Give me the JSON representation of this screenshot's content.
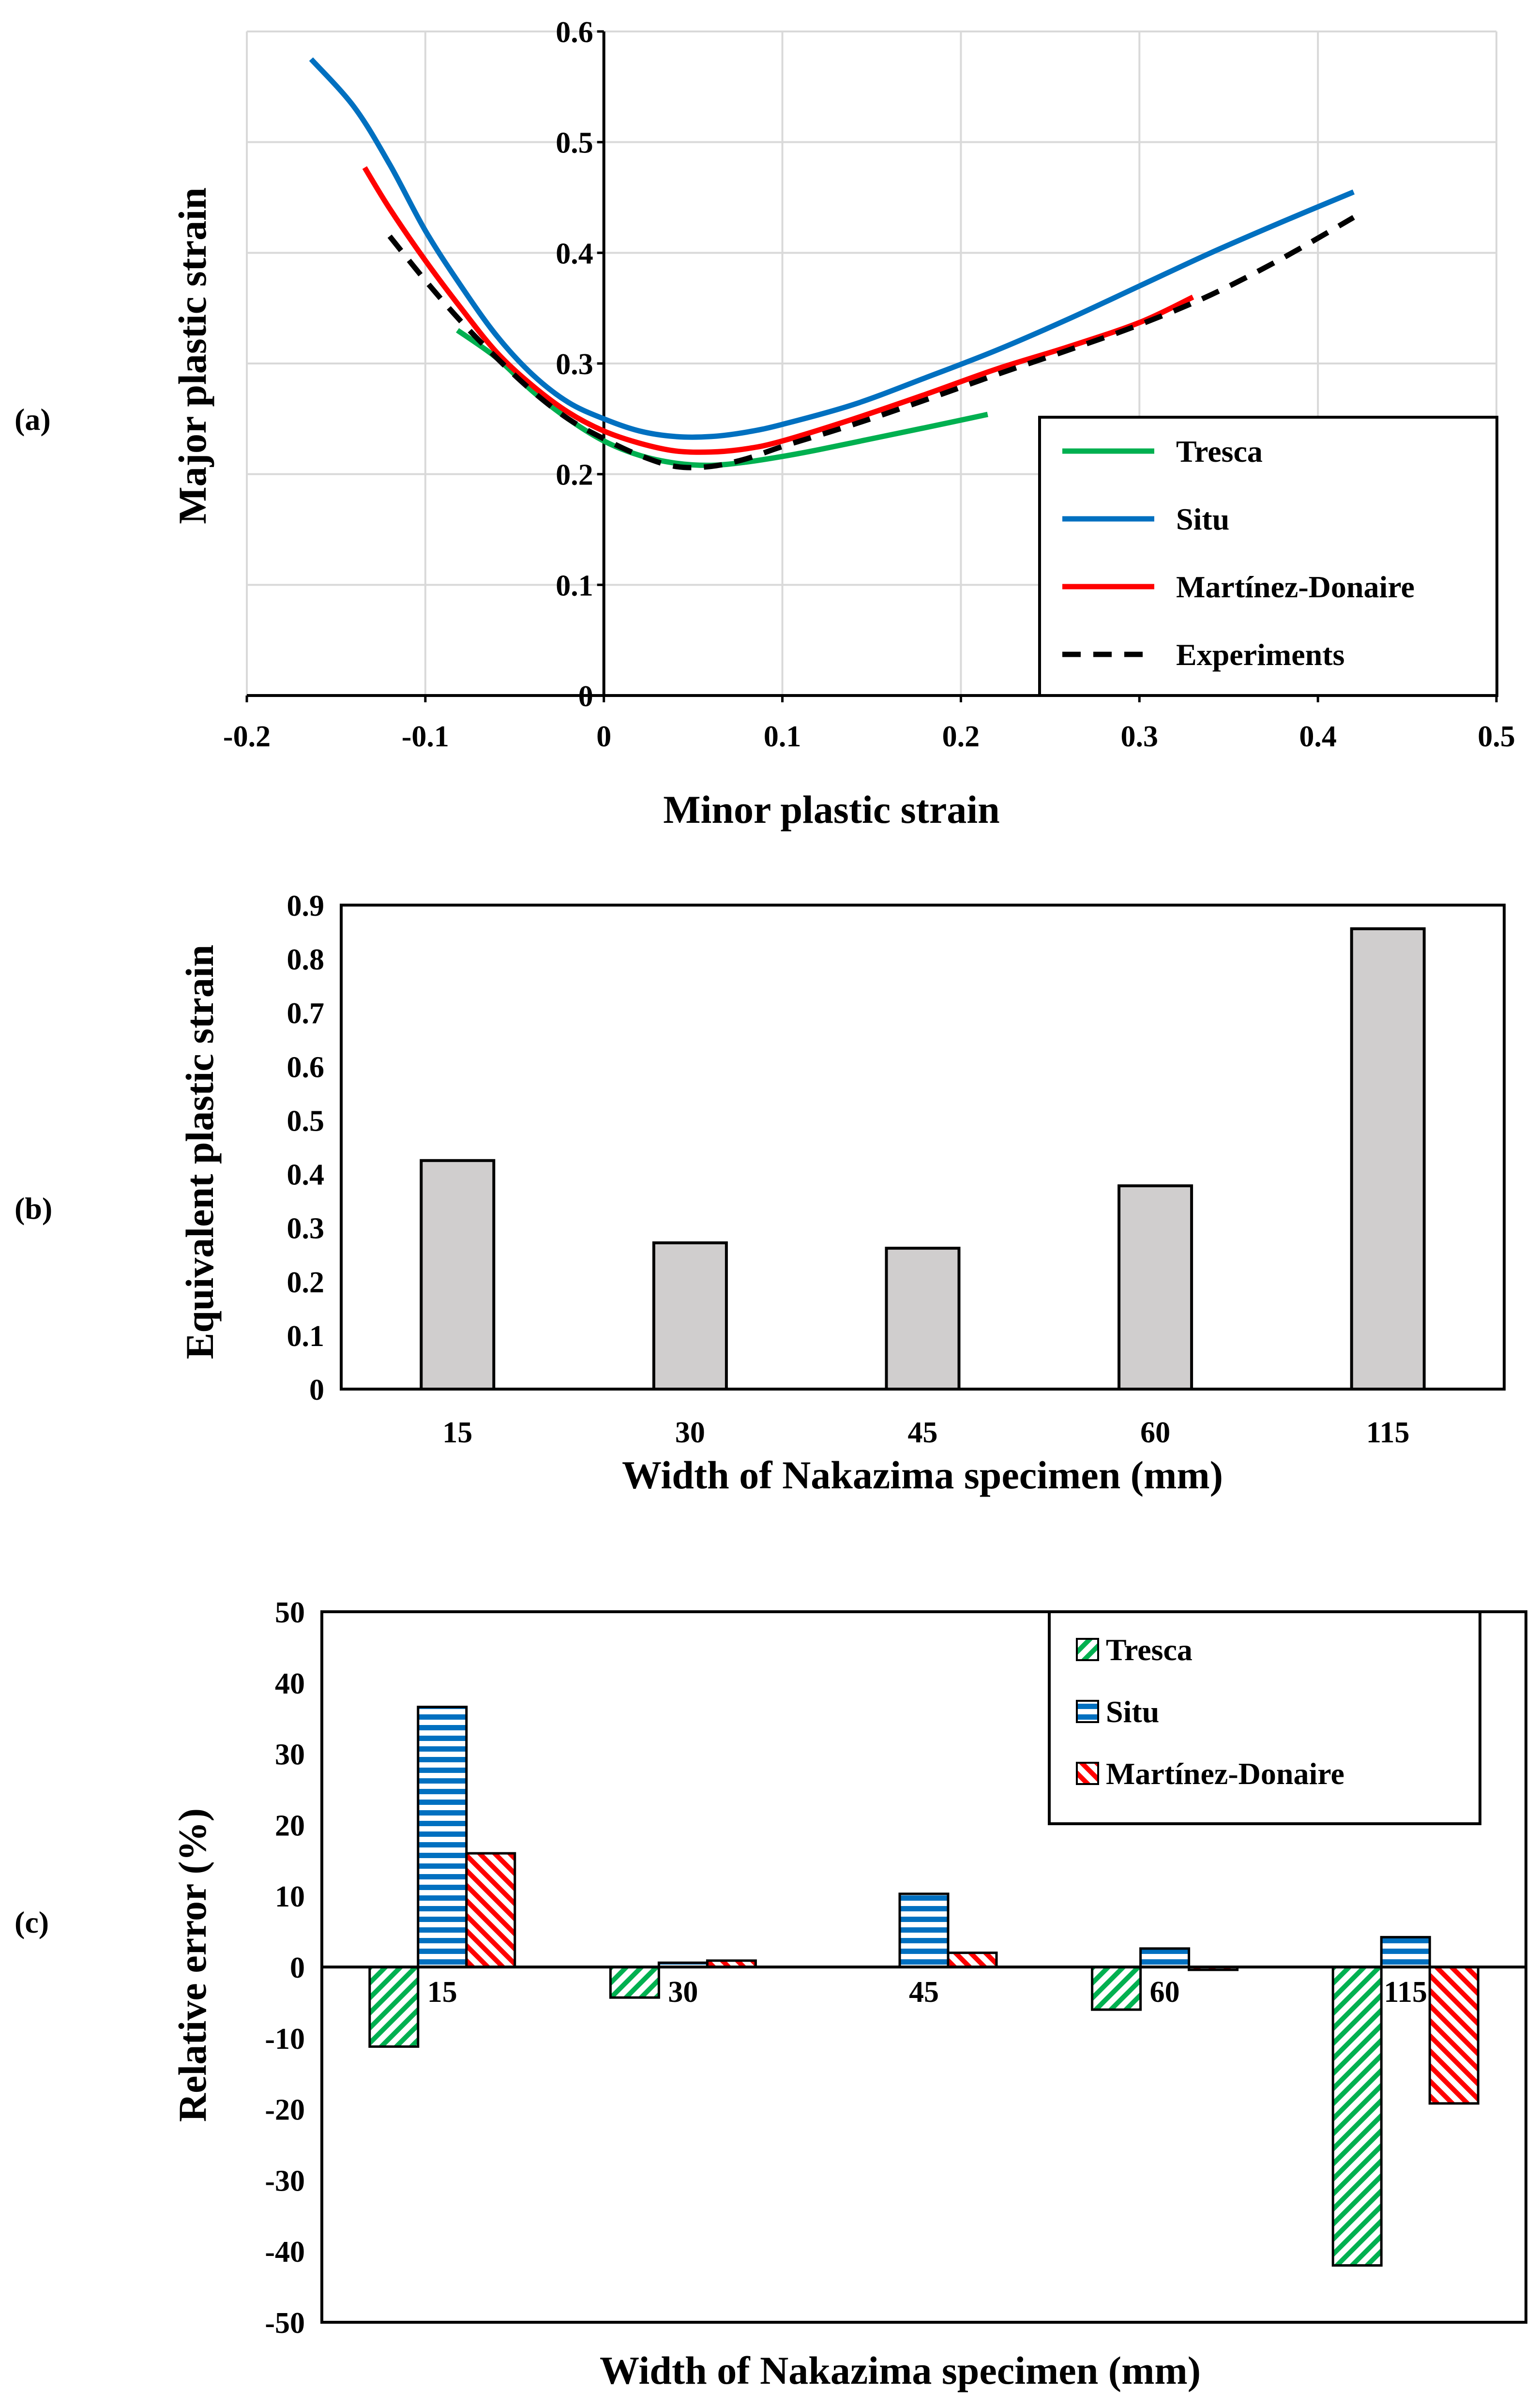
{
  "panel_labels": [
    "(a)",
    "(b)",
    "(c)"
  ],
  "chart_data": [
    {
      "type": "line",
      "panel": "(a)",
      "title": "",
      "xlabel": "Minor plastic strain",
      "ylabel": "Major plastic strain",
      "xlim": [
        -0.2,
        0.5
      ],
      "ylim": [
        0,
        0.6
      ],
      "xticks": [
        "-0.2",
        "-0.1",
        "0",
        "0.1",
        "0.2",
        "0.3",
        "0.4",
        "0.5"
      ],
      "yticks": [
        "0",
        "0.1",
        "0.2",
        "0.3",
        "0.4",
        "0.5",
        "0.6"
      ],
      "grid": true,
      "legend_position": "bottom-right",
      "series": [
        {
          "name": "Tresca",
          "color": "#00b050",
          "dash": "solid",
          "points": [
            [
              -0.082,
              0.33
            ],
            [
              -0.06,
              0.305
            ],
            [
              -0.04,
              0.275
            ],
            [
              -0.02,
              0.25
            ],
            [
              0.0,
              0.23
            ],
            [
              0.02,
              0.217
            ],
            [
              0.04,
              0.21
            ],
            [
              0.06,
              0.208
            ],
            [
              0.08,
              0.211
            ],
            [
              0.1,
              0.216
            ],
            [
              0.12,
              0.222
            ],
            [
              0.15,
              0.232
            ],
            [
              0.18,
              0.242
            ],
            [
              0.215,
              0.254
            ]
          ]
        },
        {
          "name": "Situ",
          "color": "#0070c0",
          "dash": "solid",
          "points": [
            [
              -0.164,
              0.575
            ],
            [
              -0.14,
              0.532
            ],
            [
              -0.12,
              0.48
            ],
            [
              -0.1,
              0.42
            ],
            [
              -0.08,
              0.37
            ],
            [
              -0.06,
              0.325
            ],
            [
              -0.04,
              0.29
            ],
            [
              -0.02,
              0.265
            ],
            [
              0.0,
              0.25
            ],
            [
              0.02,
              0.239
            ],
            [
              0.04,
              0.234
            ],
            [
              0.06,
              0.234
            ],
            [
              0.08,
              0.238
            ],
            [
              0.1,
              0.245
            ],
            [
              0.14,
              0.263
            ],
            [
              0.18,
              0.287
            ],
            [
              0.22,
              0.312
            ],
            [
              0.26,
              0.34
            ],
            [
              0.3,
              0.37
            ],
            [
              0.34,
              0.4
            ],
            [
              0.38,
              0.428
            ],
            [
              0.42,
              0.455
            ]
          ]
        },
        {
          "name": "Martínez-Donaire",
          "color": "#ff0000",
          "dash": "solid",
          "points": [
            [
              -0.134,
              0.477
            ],
            [
              -0.12,
              0.44
            ],
            [
              -0.1,
              0.393
            ],
            [
              -0.08,
              0.35
            ],
            [
              -0.06,
              0.31
            ],
            [
              -0.04,
              0.28
            ],
            [
              -0.02,
              0.256
            ],
            [
              0.0,
              0.239
            ],
            [
              0.02,
              0.228
            ],
            [
              0.04,
              0.221
            ],
            [
              0.06,
              0.22
            ],
            [
              0.08,
              0.223
            ],
            [
              0.1,
              0.23
            ],
            [
              0.14,
              0.25
            ],
            [
              0.18,
              0.272
            ],
            [
              0.22,
              0.295
            ],
            [
              0.26,
              0.315
            ],
            [
              0.3,
              0.337
            ],
            [
              0.33,
              0.36
            ]
          ]
        },
        {
          "name": "Experiments",
          "color": "#000000",
          "dash": "dashed",
          "points": [
            [
              -0.12,
              0.415
            ],
            [
              -0.1,
              0.375
            ],
            [
              -0.08,
              0.338
            ],
            [
              -0.06,
              0.305
            ],
            [
              -0.04,
              0.275
            ],
            [
              -0.02,
              0.25
            ],
            [
              0.0,
              0.232
            ],
            [
              0.02,
              0.217
            ],
            [
              0.04,
              0.207
            ],
            [
              0.06,
              0.207
            ],
            [
              0.08,
              0.214
            ],
            [
              0.1,
              0.225
            ],
            [
              0.14,
              0.245
            ],
            [
              0.18,
              0.267
            ],
            [
              0.22,
              0.29
            ],
            [
              0.26,
              0.312
            ],
            [
              0.3,
              0.335
            ],
            [
              0.34,
              0.362
            ],
            [
              0.38,
              0.395
            ],
            [
              0.42,
              0.432
            ]
          ]
        }
      ]
    },
    {
      "type": "bar",
      "panel": "(b)",
      "title": "",
      "xlabel": "Width of Nakazima specimen (mm)",
      "ylabel": "Equivalent plastic strain",
      "ylim": [
        0,
        0.9
      ],
      "yticks": [
        "0",
        "0.1",
        "0.2",
        "0.3",
        "0.4",
        "0.5",
        "0.6",
        "0.7",
        "0.8",
        "0.9"
      ],
      "categories": [
        "15",
        "30",
        "45",
        "60",
        "115"
      ],
      "values": [
        0.425,
        0.272,
        0.262,
        0.378,
        0.856
      ],
      "bar_color": "#d0cece",
      "grid": false
    },
    {
      "type": "bar",
      "panel": "(c)",
      "title": "",
      "xlabel": "Width of Nakazima specimen (mm)",
      "ylabel": "Relative error (%)",
      "ylim": [
        -50,
        50
      ],
      "yticks": [
        "-50",
        "-40",
        "-30",
        "-20",
        "-10",
        "0",
        "10",
        "20",
        "30",
        "40",
        "50"
      ],
      "categories": [
        "15",
        "30",
        "45",
        "60",
        "115"
      ],
      "grid": false,
      "legend_position": "top-right",
      "series": [
        {
          "name": "Tresca",
          "color": "#00b050",
          "pattern": "diagonal",
          "values": [
            -11.2,
            -4.3,
            0,
            -6.0,
            -42.0
          ]
        },
        {
          "name": "Situ",
          "color": "#0070c0",
          "pattern": "horizontal",
          "values": [
            36.6,
            0.6,
            10.3,
            2.6,
            4.2
          ]
        },
        {
          "name": "Martínez-Donaire",
          "color": "#ff0000",
          "pattern": "diagonal-reverse",
          "values": [
            16.0,
            0.9,
            2.0,
            -0.4,
            -19.2
          ]
        }
      ]
    }
  ]
}
